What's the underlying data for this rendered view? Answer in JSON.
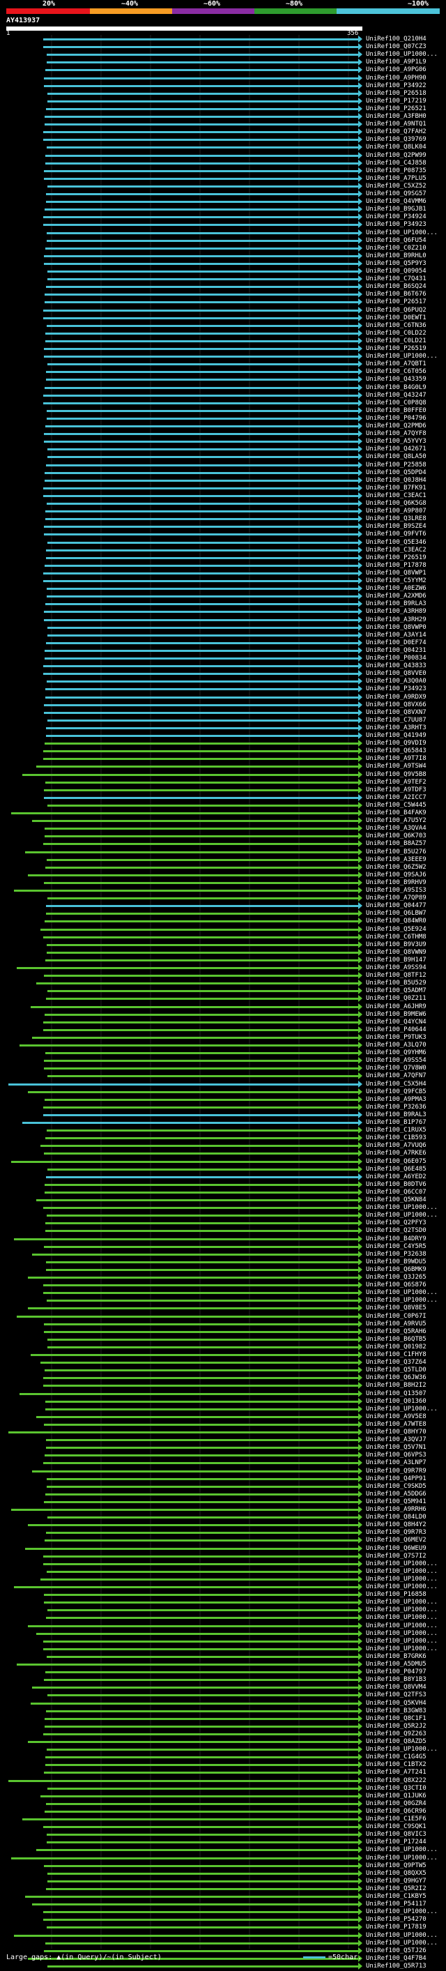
{
  "scale": {
    "labels": [
      "20%",
      "~40%",
      "~60%",
      "~80%",
      "~100%"
    ],
    "colors": [
      "#e8141b",
      "#f59b23",
      "#8a2ca3",
      "#2e9b2e",
      "#4cc3d9"
    ]
  },
  "query": {
    "id": "AY413937",
    "start": "1",
    "end": "356"
  },
  "colors": {
    "blue": "#49c2d8",
    "green": "#5ac42f",
    "dark": "#2a7f1a"
  },
  "hits": [
    {
      "label": "UniRef100_Q210H4",
      "c": "b"
    },
    {
      "label": "UniRef100_Q07CZ3",
      "c": "b"
    },
    {
      "label": "UniRef100_UP1000...",
      "c": "b"
    },
    {
      "label": "UniRef100_A9P1L9",
      "c": "b"
    },
    {
      "label": "UniRef100_A9PG06",
      "c": "b"
    },
    {
      "label": "UniRef100_A9PH90",
      "c": "b"
    },
    {
      "label": "UniRef100_P34922",
      "c": "b"
    },
    {
      "label": "UniRef100_P26518",
      "c": "b"
    },
    {
      "label": "UniRef100_P17219",
      "c": "b"
    },
    {
      "label": "UniRef100_P26521",
      "c": "b"
    },
    {
      "label": "UniRef100_A3FBH0",
      "c": "b"
    },
    {
      "label": "UniRef100_A9NTQ1",
      "c": "b"
    },
    {
      "label": "UniRef100_Q7FAH2",
      "c": "b"
    },
    {
      "label": "UniRef100_Q39769",
      "c": "b"
    },
    {
      "label": "UniRef100_Q8LK04",
      "c": "b"
    },
    {
      "label": "UniRef100_Q2PW99",
      "c": "b"
    },
    {
      "label": "UniRef100_C4J858",
      "c": "b"
    },
    {
      "label": "UniRef100_P08735",
      "c": "b"
    },
    {
      "label": "UniRef100_A7PLU5",
      "c": "b"
    },
    {
      "label": "UniRef100_C5XZ52",
      "c": "b"
    },
    {
      "label": "UniRef100_Q9SG57",
      "c": "b"
    },
    {
      "label": "UniRef100_Q4VMM6",
      "c": "b"
    },
    {
      "label": "UniRef100_B9GJB1",
      "c": "b"
    },
    {
      "label": "UniRef100_P34924",
      "c": "b"
    },
    {
      "label": "UniRef100_P34923",
      "c": "b"
    },
    {
      "label": "UniRef100_UP1000...",
      "c": "b"
    },
    {
      "label": "UniRef100_Q6FU54",
      "c": "b"
    },
    {
      "label": "UniRef100_C0Z210",
      "c": "b"
    },
    {
      "label": "UniRef100_B9RHL0",
      "c": "b"
    },
    {
      "label": "UniRef100_Q5P9Y3",
      "c": "b"
    },
    {
      "label": "UniRef100_Q09054",
      "c": "b"
    },
    {
      "label": "UniRef100_C7Q431",
      "c": "b"
    },
    {
      "label": "UniRef100_B6SQ24",
      "c": "b"
    },
    {
      "label": "UniRef100_B6T676",
      "c": "b"
    },
    {
      "label": "UniRef100_P26517",
      "c": "b"
    },
    {
      "label": "UniRef100_Q6PUQ2",
      "c": "b"
    },
    {
      "label": "UniRef100_D0EWT1",
      "c": "b"
    },
    {
      "label": "UniRef100_C6TN36",
      "c": "b"
    },
    {
      "label": "UniRef100_C0LD22",
      "c": "b"
    },
    {
      "label": "UniRef100_C0LD21",
      "c": "b"
    },
    {
      "label": "UniRef100_P26519",
      "c": "b"
    },
    {
      "label": "UniRef100_UP1000...",
      "c": "b"
    },
    {
      "label": "UniRef100_A7QBT1",
      "c": "b"
    },
    {
      "label": "UniRef100_C6T056",
      "c": "b"
    },
    {
      "label": "UniRef100_Q43359",
      "c": "b"
    },
    {
      "label": "UniRef100_B4G0L9",
      "c": "b"
    },
    {
      "label": "UniRef100_Q43247",
      "c": "b"
    },
    {
      "label": "UniRef100_C0P8Q8",
      "c": "b"
    },
    {
      "label": "UniRef100_B0FFE0",
      "c": "b"
    },
    {
      "label": "UniRef100_P04796",
      "c": "b"
    },
    {
      "label": "UniRef100_Q2PMD6",
      "c": "b"
    },
    {
      "label": "UniRef100_A7QYF8",
      "c": "b"
    },
    {
      "label": "UniRef100_A5YVY3",
      "c": "b"
    },
    {
      "label": "UniRef100_Q42671",
      "c": "b"
    },
    {
      "label": "UniRef100_Q8LA50",
      "c": "b"
    },
    {
      "label": "UniRef100_P25858",
      "c": "b"
    },
    {
      "label": "UniRef100_Q5DPD4",
      "c": "b"
    },
    {
      "label": "UniRef100_Q0J8H4",
      "c": "b"
    },
    {
      "label": "UniRef100_B7FK91",
      "c": "b"
    },
    {
      "label": "UniRef100_C3EAC1",
      "c": "b"
    },
    {
      "label": "UniRef100_Q6K5G8",
      "c": "b"
    },
    {
      "label": "UniRef100_A9P807",
      "c": "b"
    },
    {
      "label": "UniRef100_Q3LRE8",
      "c": "b"
    },
    {
      "label": "UniRef100_B9SZE4",
      "c": "b"
    },
    {
      "label": "UniRef100_Q9FVT6",
      "c": "b"
    },
    {
      "label": "UniRef100_Q5E346",
      "c": "b"
    },
    {
      "label": "UniRef100_C3EAC2",
      "c": "b"
    },
    {
      "label": "UniRef100_P26519",
      "c": "b"
    },
    {
      "label": "UniRef100_P17878",
      "c": "b"
    },
    {
      "label": "UniRef100_Q8VWP1",
      "c": "b"
    },
    {
      "label": "UniRef100_C5YYM2",
      "c": "b"
    },
    {
      "label": "UniRef100_A0EZW6",
      "c": "b"
    },
    {
      "label": "UniRef100_A2XMD6",
      "c": "b"
    },
    {
      "label": "UniRef100_B9RLA3",
      "c": "b"
    },
    {
      "label": "UniRef100_A3RH89",
      "c": "b"
    },
    {
      "label": "UniRef100_A3RH29",
      "c": "b"
    },
    {
      "label": "UniRef100_Q8VWP0",
      "c": "b"
    },
    {
      "label": "UniRef100_A3AY14",
      "c": "b"
    },
    {
      "label": "UniRef100_D0EF74",
      "c": "b"
    },
    {
      "label": "UniRef100_Q04231",
      "c": "b"
    },
    {
      "label": "UniRef100_P00834",
      "c": "b"
    },
    {
      "label": "UniRef100_Q43833",
      "c": "b"
    },
    {
      "label": "UniRef100_Q8VVE0",
      "c": "b"
    },
    {
      "label": "UniRef100_A3Q0A0",
      "c": "b"
    },
    {
      "label": "UniRef100_P34923",
      "c": "b"
    },
    {
      "label": "UniRef100_A9RDX9",
      "c": "b"
    },
    {
      "label": "UniRef100_Q8VX66",
      "c": "b"
    },
    {
      "label": "UniRef100_Q8VXN7",
      "c": "b"
    },
    {
      "label": "UniRef100_C7UU87",
      "c": "b"
    },
    {
      "label": "UniRef100_A3RHT3",
      "c": "b"
    },
    {
      "label": "UniRef100_Q41949",
      "c": "b"
    },
    {
      "label": "UniRef100_Q9VDI9",
      "c": "g"
    },
    {
      "label": "UniRef100_Q65843",
      "c": "g"
    },
    {
      "label": "UniRef100_A9T7I8",
      "c": "g"
    },
    {
      "label": "UniRef100_A9TSW4",
      "c": "g"
    },
    {
      "label": "UniRef100_Q9V5B8",
      "c": "g"
    },
    {
      "label": "UniRef100_A9TEF2",
      "c": "g"
    },
    {
      "label": "UniRef100_A9TDF3",
      "c": "g"
    },
    {
      "label": "UniRef100_A2ICC7",
      "c": "b"
    },
    {
      "label": "UniRef100_C5W445",
      "c": "g"
    },
    {
      "label": "UniRef100_B4FAK9",
      "c": "g"
    },
    {
      "label": "UniRef100_A7U5Y2",
      "c": "g"
    },
    {
      "label": "UniRef100_A3QVA4",
      "c": "g"
    },
    {
      "label": "UniRef100_Q6K703",
      "c": "g"
    },
    {
      "label": "UniRef100_B8AZ57",
      "c": "g"
    },
    {
      "label": "UniRef100_B5U276",
      "c": "g"
    },
    {
      "label": "UniRef100_A3EEE9",
      "c": "g"
    },
    {
      "label": "UniRef100_Q6Z5W2",
      "c": "g"
    },
    {
      "label": "UniRef100_Q9SAJ6",
      "c": "g"
    },
    {
      "label": "UniRef100_B9RHV9",
      "c": "g"
    },
    {
      "label": "UniRef100_A9SIS3",
      "c": "g"
    },
    {
      "label": "UniRef100_A7QP89",
      "c": "g"
    },
    {
      "label": "UniRef100_Q04477",
      "c": "b"
    },
    {
      "label": "UniRef100_Q6LBW7",
      "c": "g"
    },
    {
      "label": "UniRef100_Q84WR0",
      "c": "g"
    },
    {
      "label": "UniRef100_Q5E924",
      "c": "g"
    },
    {
      "label": "UniRef100_C6THM8",
      "c": "g"
    },
    {
      "label": "UniRef100_B9V3U9",
      "c": "g"
    },
    {
      "label": "UniRef100_Q8VWN9",
      "c": "g"
    },
    {
      "label": "UniRef100_B9H147",
      "c": "g"
    },
    {
      "label": "UniRef100_A9SS94",
      "c": "g"
    },
    {
      "label": "UniRef100_Q8TF12",
      "c": "g"
    },
    {
      "label": "UniRef100_B5U529",
      "c": "g"
    },
    {
      "label": "UniRef100_Q5ADM7",
      "c": "g"
    },
    {
      "label": "UniRef100_Q0Z211",
      "c": "g"
    },
    {
      "label": "UniRef100_A6JHR9",
      "c": "g"
    },
    {
      "label": "UniRef100_B9MEW6",
      "c": "g"
    },
    {
      "label": "UniRef100_Q4YCN4",
      "c": "g"
    },
    {
      "label": "UniRef100_P40644",
      "c": "g"
    },
    {
      "label": "UniRef100_P9TUK3",
      "c": "g"
    },
    {
      "label": "UniRef100_A3LQ70",
      "c": "g"
    },
    {
      "label": "UniRef100_Q9YHM6",
      "c": "g"
    },
    {
      "label": "UniRef100_A9SS54",
      "c": "g"
    },
    {
      "label": "UniRef100_Q7V8W0",
      "c": "g"
    },
    {
      "label": "UniRef100_A7QFN7",
      "c": "g"
    },
    {
      "label": "UniRef100_C5X5H4",
      "c": "b"
    },
    {
      "label": "UniRef100_Q9FCB5",
      "c": "g"
    },
    {
      "label": "UniRef100_A9PMA3",
      "c": "g"
    },
    {
      "label": "UniRef100_P32636",
      "c": "g"
    },
    {
      "label": "UniRef100_B9RAL3",
      "c": "b"
    },
    {
      "label": "UniRef100_B1P767",
      "c": "b"
    },
    {
      "label": "UniRef100_C1RUX5",
      "c": "g"
    },
    {
      "label": "UniRef100_C1B593",
      "c": "g"
    },
    {
      "label": "UniRef100_A7VUQ6",
      "c": "g"
    },
    {
      "label": "UniRef100_A7RKE6",
      "c": "g"
    },
    {
      "label": "UniRef100_Q6E075",
      "c": "g"
    },
    {
      "label": "UniRef100_Q6E485",
      "c": "g"
    },
    {
      "label": "UniRef100_A6YED2",
      "c": "b"
    },
    {
      "label": "UniRef100_B0DTV6",
      "c": "g"
    },
    {
      "label": "UniRef100_Q6CC07",
      "c": "g"
    },
    {
      "label": "UniRef100_Q5KN84",
      "c": "g"
    },
    {
      "label": "UniRef100_UP1000...",
      "c": "g"
    },
    {
      "label": "UniRef100_UP1000...",
      "c": "g"
    },
    {
      "label": "UniRef100_Q2PFY3",
      "c": "g"
    },
    {
      "label": "UniRef100_Q2TSD0",
      "c": "g"
    },
    {
      "label": "UniRef100_B4DRY9",
      "c": "g"
    },
    {
      "label": "UniRef100_C4Y5R5",
      "c": "g"
    },
    {
      "label": "UniRef100_P32638",
      "c": "g"
    },
    {
      "label": "UniRef100_B9WDU5",
      "c": "g"
    },
    {
      "label": "UniRef100_Q6BMK9",
      "c": "g"
    },
    {
      "label": "UniRef100_Q3J265",
      "c": "g"
    },
    {
      "label": "UniRef100_Q6S876",
      "c": "g"
    },
    {
      "label": "UniRef100_UP1000...",
      "c": "g"
    },
    {
      "label": "UniRef100_UP1000...",
      "c": "g"
    },
    {
      "label": "UniRef100_Q8V8E5",
      "c": "g"
    },
    {
      "label": "UniRef100_C0P67I",
      "c": "g"
    },
    {
      "label": "UniRef100_A9RVU5",
      "c": "g"
    },
    {
      "label": "UniRef100_Q5RAH6",
      "c": "g"
    },
    {
      "label": "UniRef100_B6QTB5",
      "c": "g"
    },
    {
      "label": "UniRef100_Q01982",
      "c": "g"
    },
    {
      "label": "UniRef100_C1FHY8",
      "c": "g"
    },
    {
      "label": "UniRef100_Q37Z64",
      "c": "g"
    },
    {
      "label": "UniRef100_Q5TLD0",
      "c": "g"
    },
    {
      "label": "UniRef100_Q6JW36",
      "c": "g"
    },
    {
      "label": "UniRef100_B8H2I2",
      "c": "g"
    },
    {
      "label": "UniRef100_Q13507",
      "c": "g"
    },
    {
      "label": "UniRef100_Q01360",
      "c": "g"
    },
    {
      "label": "UniRef100_UP1000...",
      "c": "g"
    },
    {
      "label": "UniRef100_A9V5E8",
      "c": "g"
    },
    {
      "label": "UniRef100_A7WTE8",
      "c": "g"
    },
    {
      "label": "UniRef100_Q8HY70",
      "c": "g"
    },
    {
      "label": "UniRef100_A3QVJ7",
      "c": "g"
    },
    {
      "label": "UniRef100_Q5V7N1",
      "c": "g"
    },
    {
      "label": "UniRef100_Q6VPS3",
      "c": "g"
    },
    {
      "label": "UniRef100_A3LNP7",
      "c": "g"
    },
    {
      "label": "UniRef100_Q9R7R9",
      "c": "g"
    },
    {
      "label": "UniRef100_Q4PP91",
      "c": "g"
    },
    {
      "label": "UniRef100_C9SKD5",
      "c": "g"
    },
    {
      "label": "UniRef100_A5DDG6",
      "c": "g"
    },
    {
      "label": "UniRef100_Q5M941",
      "c": "g"
    },
    {
      "label": "UniRef100_A9RRH6",
      "c": "g"
    },
    {
      "label": "UniRef100_Q84LD0",
      "c": "g"
    },
    {
      "label": "UniRef100_Q8H4Y2",
      "c": "g"
    },
    {
      "label": "UniRef100_Q9R7R3",
      "c": "g"
    },
    {
      "label": "UniRef100_Q6MEV2",
      "c": "g"
    },
    {
      "label": "UniRef100_Q6WEU9",
      "c": "g"
    },
    {
      "label": "UniRef100_Q7S7I2",
      "c": "g"
    },
    {
      "label": "UniRef100_UP1000...",
      "c": "g"
    },
    {
      "label": "UniRef100_UP1000...",
      "c": "g"
    },
    {
      "label": "UniRef100_UP1000...",
      "c": "g"
    },
    {
      "label": "UniRef100_UP1000...",
      "c": "g"
    },
    {
      "label": "UniRef100_P16858",
      "c": "g"
    },
    {
      "label": "UniRef100_UP1000...",
      "c": "g"
    },
    {
      "label": "UniRef100_UP1000...",
      "c": "g"
    },
    {
      "label": "UniRef100_UP1000...",
      "c": "g"
    },
    {
      "label": "UniRef100_UP1000...",
      "c": "g"
    },
    {
      "label": "UniRef100_UP1000...",
      "c": "g"
    },
    {
      "label": "UniRef100_UP1000...",
      "c": "g"
    },
    {
      "label": "UniRef100_UP1000...",
      "c": "g"
    },
    {
      "label": "UniRef100_B7GRK6",
      "c": "g"
    },
    {
      "label": "UniRef100_A5DMU5",
      "c": "g"
    },
    {
      "label": "UniRef100_P04797",
      "c": "g"
    },
    {
      "label": "UniRef100_B8Y1B3",
      "c": "g"
    },
    {
      "label": "UniRef100_Q8VVM4",
      "c": "g"
    },
    {
      "label": "UniRef100_Q2TFS3",
      "c": "g"
    },
    {
      "label": "UniRef100_Q5KVH4",
      "c": "g"
    },
    {
      "label": "UniRef100_B3GW83",
      "c": "g"
    },
    {
      "label": "UniRef100_Q8C1F1",
      "c": "g"
    },
    {
      "label": "UniRef100_Q5R2J2",
      "c": "g"
    },
    {
      "label": "UniRef100_Q9Z263",
      "c": "g"
    },
    {
      "label": "UniRef100_Q8AZD5",
      "c": "g"
    },
    {
      "label": "UniRef100_UP1000...",
      "c": "g"
    },
    {
      "label": "UniRef100_C1G4G5",
      "c": "g"
    },
    {
      "label": "UniRef100_C1BTX2",
      "c": "g"
    },
    {
      "label": "UniRef100_A7T241",
      "c": "g"
    },
    {
      "label": "UniRef100_Q8X222",
      "c": "g"
    },
    {
      "label": "UniRef100_Q3CTI0",
      "c": "g"
    },
    {
      "label": "UniRef100_Q1JUK6",
      "c": "g"
    },
    {
      "label": "UniRef100_Q0GZR4",
      "c": "g"
    },
    {
      "label": "UniRef100_Q6CR96",
      "c": "g"
    },
    {
      "label": "UniRef100_C1E5F6",
      "c": "g"
    },
    {
      "label": "UniRef100_C9SQK1",
      "c": "g"
    },
    {
      "label": "UniRef100_Q8VIC3",
      "c": "g"
    },
    {
      "label": "UniRef100_P17244",
      "c": "g"
    },
    {
      "label": "UniRef100_UP1000...",
      "c": "g"
    },
    {
      "label": "UniRef100_UP1000...",
      "c": "g"
    },
    {
      "label": "UniRef100_Q9PTW5",
      "c": "g"
    },
    {
      "label": "UniRef100_Q8QXX5",
      "c": "g"
    },
    {
      "label": "UniRef100_Q9HGY7",
      "c": "g"
    },
    {
      "label": "UniRef100_Q5R2I2",
      "c": "g"
    },
    {
      "label": "UniRef100_C1KBY5",
      "c": "g"
    },
    {
      "label": "UniRef100_P54117",
      "c": "g"
    },
    {
      "label": "UniRef100_UP1000...",
      "c": "g"
    },
    {
      "label": "UniRef100_P54270",
      "c": "g"
    },
    {
      "label": "UniRef100_P17819",
      "c": "g"
    },
    {
      "label": "UniRef100_UP1000...",
      "c": "g"
    },
    {
      "label": "UniRef100_UP1000...",
      "c": "g"
    },
    {
      "label": "UniRef100_Q5TJ26",
      "c": "g"
    },
    {
      "label": "UniRef100_Q4F7B4",
      "c": "g"
    },
    {
      "label": "UniRef100_Q5R713",
      "c": "g"
    }
  ],
  "footer": {
    "text": "Large gaps: ▲(in Query)/~(in Subject)",
    "legend": "=50char."
  }
}
